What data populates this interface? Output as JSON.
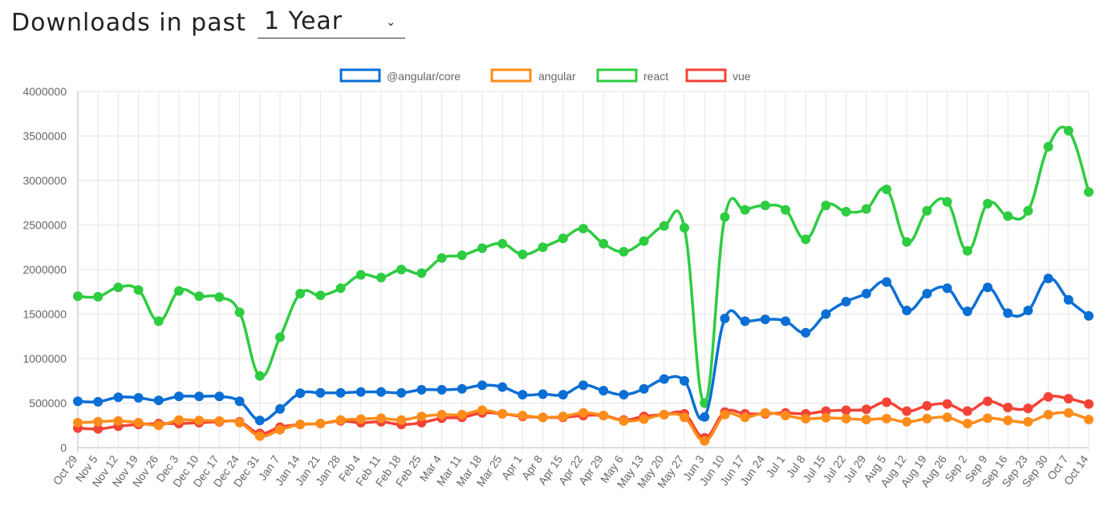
{
  "header": {
    "title": "Downloads in past",
    "range_value": "1 Year",
    "range_options": [
      "1 Year"
    ]
  },
  "chart_data": {
    "type": "line",
    "title": "Downloads in past 1 Year",
    "xlabel": "",
    "ylabel": "",
    "ylim": [
      0,
      4000000
    ],
    "yticks": [
      "0",
      "500000",
      "1000000",
      "1500000",
      "2000000",
      "2500000",
      "3000000",
      "3500000",
      "4000000"
    ],
    "legend_position": "top-center",
    "grid": true,
    "categories": [
      "Oct 29",
      "Nov 5",
      "Nov 12",
      "Nov 19",
      "Nov 26",
      "Dec 3",
      "Dec 10",
      "Dec 17",
      "Dec 24",
      "Dec 31",
      "Jan 7",
      "Jan 14",
      "Jan 21",
      "Jan 28",
      "Feb 4",
      "Feb 11",
      "Feb 18",
      "Feb 25",
      "Mar 4",
      "Mar 11",
      "Mar 18",
      "Mar 25",
      "Apr 1",
      "Apr 8",
      "Apr 15",
      "Apr 22",
      "Apr 29",
      "May 6",
      "May 13",
      "May 20",
      "May 27",
      "Jun 3",
      "Jun 10",
      "Jun 17",
      "Jun 24",
      "Jul 1",
      "Jul 8",
      "Jul 15",
      "Jul 22",
      "Jul 29",
      "Aug 5",
      "Aug 12",
      "Aug 19",
      "Aug 26",
      "Sep 2",
      "Sep 9",
      "Sep 16",
      "Sep 23",
      "Sep 30",
      "Oct 7",
      "Oct 14"
    ],
    "series": [
      {
        "name": "@angular/core",
        "color": "#0a6fd4",
        "values": [
          520000,
          515000,
          565000,
          560000,
          530000,
          575000,
          575000,
          575000,
          520000,
          305000,
          435000,
          610000,
          615000,
          615000,
          625000,
          625000,
          615000,
          650000,
          650000,
          660000,
          700000,
          680000,
          595000,
          600000,
          595000,
          700000,
          640000,
          595000,
          660000,
          770000,
          750000,
          345000,
          1450000,
          1420000,
          1440000,
          1420000,
          1290000,
          1500000,
          1640000,
          1730000,
          1860000,
          1540000,
          1730000,
          1790000,
          1530000,
          1800000,
          1510000,
          1540000,
          1900000,
          1660000,
          1480000
        ]
      },
      {
        "name": "angular",
        "color": "#ff8c1a",
        "values": [
          280000,
          290000,
          300000,
          280000,
          250000,
          310000,
          305000,
          300000,
          280000,
          130000,
          200000,
          260000,
          270000,
          310000,
          320000,
          330000,
          310000,
          350000,
          370000,
          370000,
          420000,
          380000,
          360000,
          340000,
          350000,
          390000,
          360000,
          300000,
          320000,
          370000,
          340000,
          75000,
          370000,
          340000,
          390000,
          360000,
          325000,
          335000,
          325000,
          315000,
          325000,
          290000,
          325000,
          340000,
          270000,
          330000,
          305000,
          290000,
          370000,
          390000,
          315000
        ]
      },
      {
        "name": "react",
        "color": "#2ecc40",
        "values": [
          1700000,
          1695000,
          1800000,
          1770000,
          1420000,
          1760000,
          1700000,
          1690000,
          1520000,
          805000,
          1240000,
          1730000,
          1710000,
          1790000,
          1940000,
          1910000,
          2000000,
          1960000,
          2130000,
          2160000,
          2240000,
          2290000,
          2170000,
          2250000,
          2350000,
          2460000,
          2290000,
          2200000,
          2320000,
          2490000,
          2470000,
          500000,
          2590000,
          2670000,
          2720000,
          2670000,
          2340000,
          2720000,
          2650000,
          2680000,
          2900000,
          2310000,
          2660000,
          2760000,
          2210000,
          2740000,
          2600000,
          2660000,
          3380000,
          3560000,
          2870000
        ]
      },
      {
        "name": "vue",
        "color": "#f44336",
        "values": [
          220000,
          210000,
          240000,
          260000,
          270000,
          270000,
          280000,
          290000,
          290000,
          160000,
          230000,
          260000,
          270000,
          300000,
          280000,
          290000,
          260000,
          280000,
          330000,
          340000,
          390000,
          380000,
          350000,
          340000,
          340000,
          360000,
          360000,
          310000,
          350000,
          370000,
          380000,
          110000,
          400000,
          380000,
          380000,
          390000,
          380000,
          410000,
          420000,
          430000,
          510000,
          410000,
          470000,
          490000,
          410000,
          520000,
          450000,
          440000,
          570000,
          550000,
          490000
        ]
      }
    ]
  }
}
